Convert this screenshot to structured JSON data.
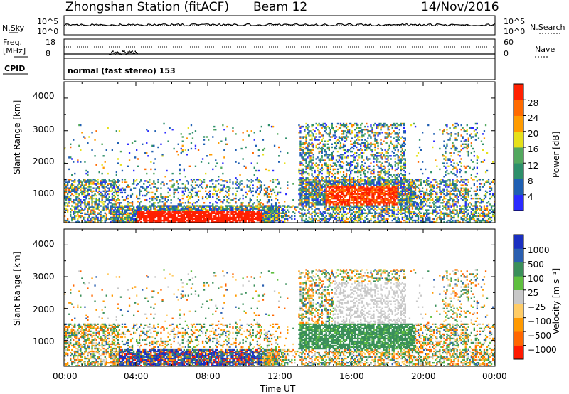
{
  "header": {
    "station": "Zhongshan Station (fitACF)",
    "beam": "Beam 12",
    "date": "14/Nov/2016"
  },
  "top_panels": {
    "nsky_label": "N.Sky",
    "nsky_ticks": [
      "10^5",
      "10^0"
    ],
    "nsearch_label": "N.Search",
    "nsearch_ticks": [
      "10^5",
      "10^0"
    ],
    "freq_label_1": "Freq.",
    "freq_label_2": "[MHz]",
    "freq_ticks": [
      "18",
      "8"
    ],
    "nave_label": "Nave",
    "nave_ticks": [
      "60",
      "0"
    ],
    "cpid_label": "CPID",
    "cpid_text": "normal (fast stereo) 153"
  },
  "chart_data": [
    {
      "type": "heatmap",
      "name": "Power",
      "ylabel": "Slant Range [km]",
      "x_range_hours": [
        0,
        24
      ],
      "ylim": [
        180,
        4500
      ],
      "yticks": [
        "4000",
        "3000",
        "2000",
        "1000"
      ],
      "colorbar_label": "Power [dB]",
      "colorbar_ticks": [
        "28",
        "24",
        "20",
        "16",
        "12",
        "8",
        "4"
      ],
      "colorbar_colors": [
        "#2a2aff",
        "#1f5fb2",
        "#2d8f6a",
        "#52a85e",
        "#e6e01a",
        "#ff9b00",
        "#ff6a00",
        "#ff2000"
      ],
      "tick_colors": [
        "#ff2000",
        "#ff6a00",
        "#ff9b00",
        "#e6e01a",
        "#52a85e",
        "#1f5fb2",
        "#2a2aff"
      ]
    },
    {
      "type": "heatmap",
      "name": "Velocity",
      "ylabel": "Slant Range [km]",
      "x_range_hours": [
        0,
        24
      ],
      "ylim": [
        180,
        4500
      ],
      "yticks": [
        "4000",
        "3000",
        "2000",
        "1000"
      ],
      "colorbar_label": "Velocity [m s⁻¹]",
      "colorbar_ticks": [
        "1000",
        "500",
        "100",
        "25",
        "−25",
        "−100",
        "−500",
        "−1000"
      ],
      "colorbar_colors": [
        "#ff1a00",
        "#ff6600",
        "#ff9900",
        "#ffcc66",
        "#c8c8c8",
        "#5fbf3f",
        "#3a8f5a",
        "#2a5fb0",
        "#1a2fc0"
      ]
    }
  ],
  "x_axis": {
    "ticks": [
      "00:00",
      "04:00",
      "08:00",
      "12:00",
      "16:00",
      "20:00",
      "00:00"
    ],
    "label": "Time UT"
  }
}
